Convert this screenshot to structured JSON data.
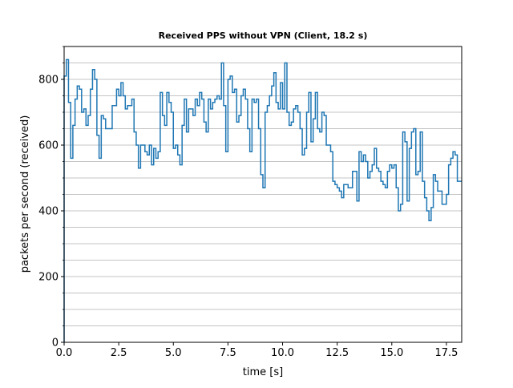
{
  "chart_data": {
    "type": "line",
    "drawstyle": "steps-post",
    "title": "Received PPS without VPN (Client, 18.2 s)",
    "xlabel": "time [s]",
    "ylabel": "packets per second (received)",
    "xlim": [
      0.0,
      18.2
    ],
    "ylim": [
      0,
      900
    ],
    "x_ticks": [
      0.0,
      2.5,
      5.0,
      7.5,
      10.0,
      12.5,
      15.0,
      17.5
    ],
    "x_tick_labels": [
      "0.0",
      "2.5",
      "5.0",
      "7.5",
      "10.0",
      "12.5",
      "15.0",
      "17.5"
    ],
    "y_ticks": [
      0,
      200,
      400,
      600,
      800
    ],
    "y_tick_labels": [
      "0",
      "200",
      "400",
      "600",
      "800"
    ],
    "y_minor_tick_step": 50,
    "grid": "horizontal, minor and major",
    "line_color": "#1f77b4",
    "series": [
      {
        "x": [
          0.0,
          0.1,
          0.2,
          0.3,
          0.4,
          0.5,
          0.6,
          0.7,
          0.8,
          0.9,
          1.0,
          1.1,
          1.2,
          1.3,
          1.4,
          1.5,
          1.6,
          1.7,
          1.8,
          1.9,
          2.0,
          2.1,
          2.2,
          2.3,
          2.4,
          2.5,
          2.6,
          2.7,
          2.8,
          2.9,
          3.0,
          3.1,
          3.2,
          3.3,
          3.4,
          3.5,
          3.6,
          3.7,
          3.8,
          3.9,
          4.0,
          4.1,
          4.2,
          4.3,
          4.4,
          4.5,
          4.6,
          4.7,
          4.8,
          4.9,
          5.0,
          5.1,
          5.2,
          5.3,
          5.4,
          5.5,
          5.6,
          5.7,
          5.8,
          5.9,
          6.0,
          6.1,
          6.2,
          6.3,
          6.4,
          6.5,
          6.6,
          6.7,
          6.8,
          6.9,
          7.0,
          7.1,
          7.2,
          7.3,
          7.4,
          7.5,
          7.6,
          7.7,
          7.8,
          7.9,
          8.0,
          8.1,
          8.2,
          8.3,
          8.4,
          8.5,
          8.6,
          8.7,
          8.8,
          8.9,
          9.0,
          9.1,
          9.2,
          9.3,
          9.4,
          9.5,
          9.6,
          9.7,
          9.8,
          9.9,
          10.0,
          10.1,
          10.2,
          10.3,
          10.4,
          10.5,
          10.6,
          10.7,
          10.8,
          10.9,
          11.0,
          11.1,
          11.2,
          11.3,
          11.4,
          11.5,
          11.6,
          11.7,
          11.8,
          11.9,
          12.0,
          12.1,
          12.2,
          12.3,
          12.4,
          12.5,
          12.6,
          12.7,
          12.8,
          12.9,
          13.0,
          13.1,
          13.2,
          13.3,
          13.4,
          13.5,
          13.6,
          13.7,
          13.8,
          13.9,
          14.0,
          14.1,
          14.2,
          14.3,
          14.4,
          14.5,
          14.6,
          14.7,
          14.8,
          14.9,
          15.0,
          15.1,
          15.2,
          15.3,
          15.4,
          15.5,
          15.6,
          15.7,
          15.8,
          15.9,
          16.0,
          16.1,
          16.2,
          16.3,
          16.4,
          16.5,
          16.6,
          16.7,
          16.8,
          16.9,
          17.0,
          17.1,
          17.2,
          17.3,
          17.4,
          17.5,
          17.6,
          17.7,
          17.8,
          17.9,
          18.0
        ],
        "y": [
          810,
          860,
          730,
          560,
          660,
          740,
          780,
          770,
          700,
          710,
          660,
          690,
          770,
          830,
          800,
          630,
          560,
          690,
          680,
          650,
          650,
          650,
          720,
          720,
          770,
          750,
          790,
          750,
          710,
          720,
          720,
          740,
          640,
          600,
          530,
          600,
          600,
          580,
          570,
          600,
          540,
          590,
          560,
          580,
          760,
          690,
          660,
          760,
          730,
          700,
          590,
          600,
          570,
          540,
          660,
          740,
          640,
          710,
          710,
          690,
          740,
          720,
          760,
          740,
          670,
          640,
          740,
          710,
          730,
          740,
          750,
          740,
          850,
          720,
          580,
          800,
          810,
          760,
          770,
          670,
          690,
          750,
          770,
          740,
          650,
          580,
          740,
          730,
          740,
          650,
          510,
          470,
          700,
          720,
          750,
          780,
          820,
          730,
          710,
          790,
          710,
          850,
          700,
          660,
          670,
          710,
          720,
          700,
          650,
          570,
          590,
          700,
          760,
          610,
          680,
          760,
          650,
          640,
          700,
          690,
          600,
          600,
          580,
          490,
          480,
          470,
          460,
          440,
          480,
          480,
          470,
          470,
          520,
          520,
          430,
          580,
          550,
          570,
          550,
          500,
          520,
          540,
          590,
          530,
          520,
          490,
          480,
          470,
          520,
          540,
          530,
          540,
          470,
          400,
          420,
          640,
          610,
          430,
          590,
          640,
          650,
          510,
          520,
          640,
          490,
          440,
          400,
          370,
          410,
          510,
          490,
          460,
          460,
          420,
          420,
          450,
          540,
          560,
          580,
          570,
          490
        ]
      }
    ]
  }
}
